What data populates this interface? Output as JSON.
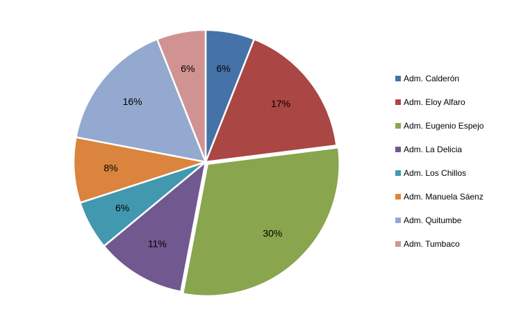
{
  "chart_data": {
    "type": "pie",
    "title": "",
    "legend_position": "right",
    "slices": [
      {
        "label": "Adm. Calderón",
        "value": 6,
        "value_label": "6%",
        "color": "#4572A7"
      },
      {
        "label": "Adm. Eloy Alfaro",
        "value": 17,
        "value_label": "17%",
        "color": "#AA4643"
      },
      {
        "label": "Adm. Eugenio Espejo",
        "value": 30,
        "value_label": "30%",
        "color": "#89A54E"
      },
      {
        "label": "Adm. La Delicia",
        "value": 11,
        "value_label": "11%",
        "color": "#71588F"
      },
      {
        "label": "Adm. Los Chillos",
        "value": 6,
        "value_label": "6%",
        "color": "#4198AF"
      },
      {
        "label": "Adm. Manuela Sáenz",
        "value": 8,
        "value_label": "8%",
        "color": "#DB843D"
      },
      {
        "label": "Adm. Quitumbe",
        "value": 16,
        "value_label": "16%",
        "color": "#93A9CF"
      },
      {
        "label": "Adm. Tumbaco",
        "value": 6,
        "value_label": "6%",
        "color": "#D19392"
      }
    ]
  }
}
